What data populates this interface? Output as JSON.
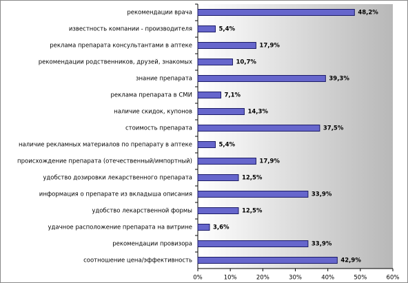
{
  "chart_data": {
    "type": "bar",
    "orientation": "horizontal",
    "categories": [
      "рекомендации врача",
      "известность компании - производителя",
      "реклама препарата консультантами в аптеке",
      "рекомендации родственников, друзей, знакомых",
      "знание препарата",
      "реклама препарата в СМИ",
      "наличие скидок, купонов",
      "стоимость препарата",
      "наличие рекламных материалов по препарату в аптеке",
      "происхождение препарата (отечественный/импортный)",
      "удобство дозировки лекарственного препарата",
      "информация о препарате из вкладыша описания",
      "удобство лекарственной формы",
      "удачное расположение препарата на витрине",
      "рекомендации провизора",
      "соотношение цена/эффективность"
    ],
    "values": [
      48.2,
      5.4,
      17.9,
      10.7,
      39.3,
      7.1,
      14.3,
      37.5,
      5.4,
      17.9,
      12.5,
      33.9,
      12.5,
      3.6,
      33.9,
      42.9
    ],
    "value_labels": [
      "48,2%",
      "5,4%",
      "17,9%",
      "10,7%",
      "39,3%",
      "7,1%",
      "14,3%",
      "37,5%",
      "5,4%",
      "17,9%",
      "12,5%",
      "33,9%",
      "12,5%",
      "3,6%",
      "33,9%",
      "42,9%"
    ],
    "color": "#6666cc",
    "xlim": [
      0,
      60
    ],
    "xticks": [
      {
        "value": 0,
        "label": "0%"
      },
      {
        "value": 10,
        "label": "10%"
      },
      {
        "value": 20,
        "label": "20%"
      },
      {
        "value": 30,
        "label": "30%"
      },
      {
        "value": 40,
        "label": "40%"
      },
      {
        "value": 50,
        "label": "50%"
      },
      {
        "value": 60,
        "label": "60%"
      }
    ],
    "grid": false
  }
}
